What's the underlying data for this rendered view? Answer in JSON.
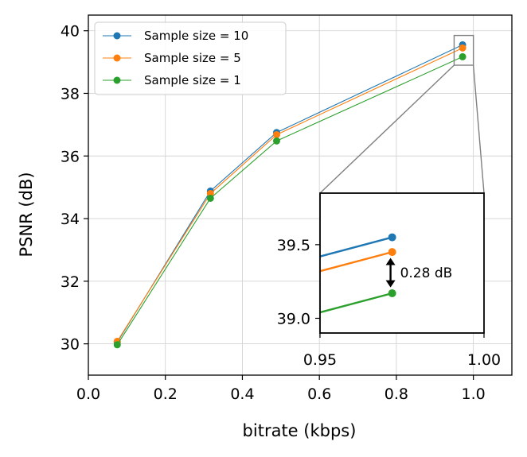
{
  "chart_data": {
    "type": "line",
    "xlabel": "bitrate (kbps)",
    "ylabel": "PSNR (dB)",
    "xlim": [
      0.0,
      1.1
    ],
    "ylim": [
      29.0,
      40.5
    ],
    "xticks": [
      0.0,
      0.2,
      0.4,
      0.6,
      0.8,
      1.0
    ],
    "xtick_labels": [
      "0.0",
      "0.2",
      "0.4",
      "0.6",
      "0.8",
      "1.0"
    ],
    "yticks": [
      30,
      32,
      34,
      36,
      38,
      40
    ],
    "ytick_labels": [
      "30",
      "32",
      "34",
      "36",
      "38",
      "40"
    ],
    "grid": true,
    "legend_position": "top-left",
    "series": [
      {
        "name": "Sample size = 10",
        "color": "#1f77b4",
        "x": [
          0.075,
          0.317,
          0.489,
          0.972
        ],
        "y": [
          30.05,
          34.88,
          36.75,
          39.55
        ]
      },
      {
        "name": "Sample size = 5",
        "color": "#ff7f0e",
        "x": [
          0.075,
          0.317,
          0.489,
          0.972
        ],
        "y": [
          30.08,
          34.8,
          36.68,
          39.45
        ]
      },
      {
        "name": "Sample size = 1",
        "color": "#2ca02c",
        "x": [
          0.075,
          0.317,
          0.489,
          0.972
        ],
        "y": [
          29.97,
          34.65,
          36.48,
          39.17
        ]
      }
    ],
    "inset": {
      "xlim": [
        0.95,
        1.0
      ],
      "ylim": [
        38.9,
        39.85
      ],
      "xticks": [
        0.95,
        1.0
      ],
      "xtick_labels": [
        "0.95",
        "1.00"
      ],
      "yticks": [
        39.0,
        39.5
      ],
      "ytick_labels": [
        "39.0",
        "39.5"
      ],
      "series_extension_x": 0.95,
      "series_extension_y": [
        39.42,
        39.32,
        39.04
      ],
      "annotation": {
        "text": "0.28 dB",
        "x": 0.9715,
        "y_top": 39.41,
        "y_bottom": 39.21
      }
    }
  }
}
